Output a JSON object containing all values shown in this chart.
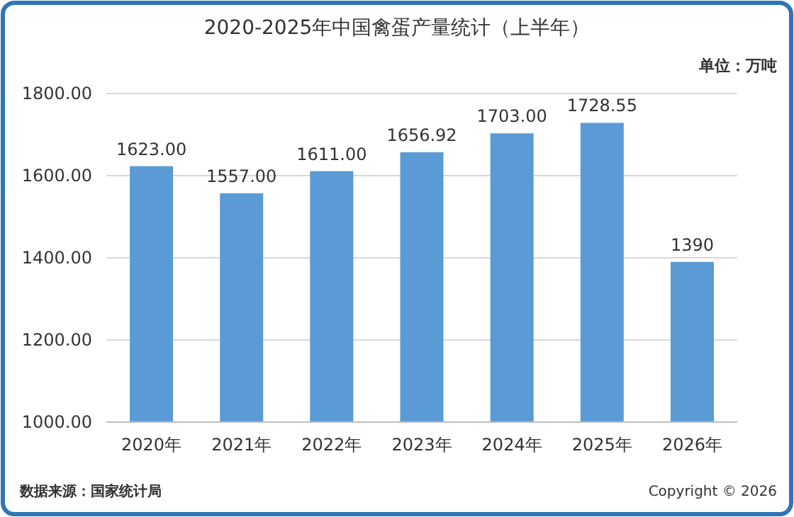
{
  "chart_data": {
    "type": "bar",
    "title": "2020-2025年中国禽蛋产量统计（上半年）",
    "subtitle": "单位：万吨",
    "categories": [
      "2020年",
      "2021年",
      "2022年",
      "2023年",
      "2024年",
      "2025年",
      "2026年"
    ],
    "values": [
      1623,
      1557,
      1611,
      1656.92,
      1703,
      1728.55,
      1390
    ],
    "value_labels": [
      "1623.00",
      "1557.00",
      "1611.00",
      "1656.92",
      "1703.00",
      "1728.55",
      "1390"
    ],
    "color": "#5b9bd5",
    "ylim": [
      1000,
      1800
    ],
    "yticks": [
      {
        "value": 1000,
        "label": "1000.00"
      },
      {
        "value": 1200,
        "label": "1200.00"
      },
      {
        "value": 1400,
        "label": "1400.00"
      },
      {
        "value": 1600,
        "label": "1600.00"
      },
      {
        "value": 1800,
        "label": "1800.00"
      }
    ],
    "grid": "y",
    "annotations": [
      "数据来源：国家统计局",
      "Copyright © 2026"
    ]
  }
}
